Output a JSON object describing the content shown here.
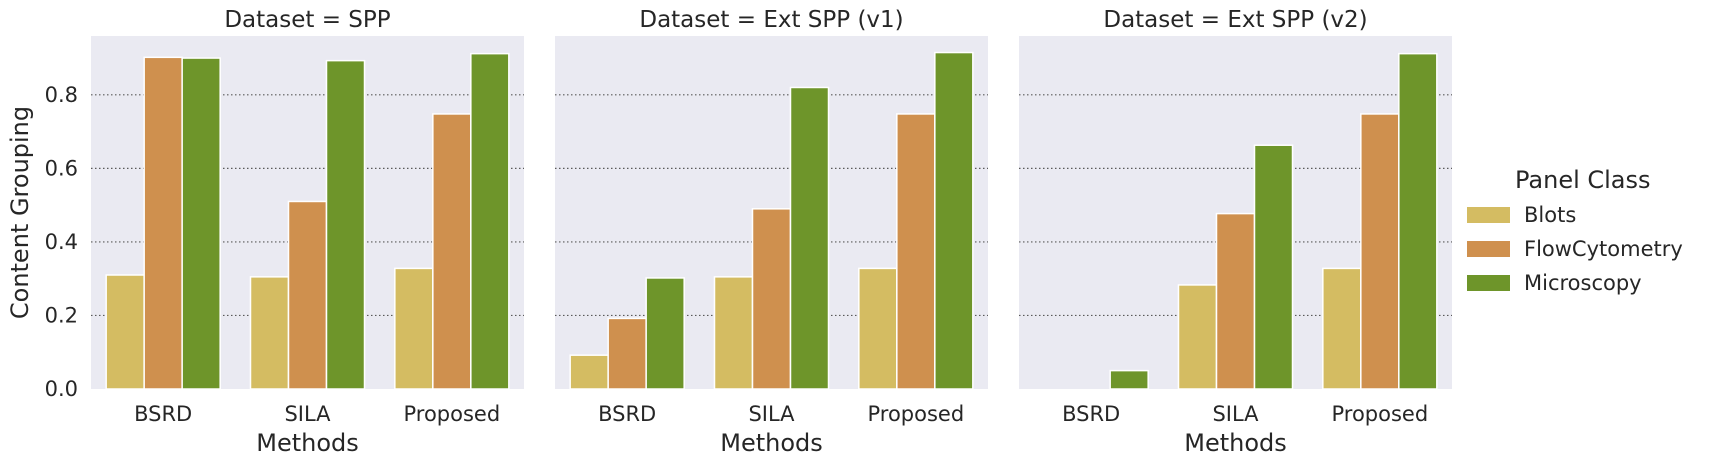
{
  "chart_data": {
    "type": "bar",
    "facet_by": "Dataset",
    "panels": [
      {
        "title": "Dataset = SPP",
        "categories": [
          "BSRD",
          "SILA",
          "Proposed"
        ],
        "series": [
          {
            "name": "Blots",
            "values": [
              0.31,
              0.305,
              0.328
            ]
          },
          {
            "name": "FlowCytometry",
            "values": [
              0.902,
              0.51,
              0.748
            ]
          },
          {
            "name": "Microscopy",
            "values": [
              0.9,
              0.893,
              0.912
            ]
          }
        ]
      },
      {
        "title": "Dataset = Ext SPP (v1)",
        "categories": [
          "BSRD",
          "SILA",
          "Proposed"
        ],
        "series": [
          {
            "name": "Blots",
            "values": [
              0.092,
              0.305,
              0.328
            ]
          },
          {
            "name": "FlowCytometry",
            "values": [
              0.192,
              0.49,
              0.748
            ]
          },
          {
            "name": "Microscopy",
            "values": [
              0.302,
              0.82,
              0.915
            ]
          }
        ]
      },
      {
        "title": "Dataset = Ext SPP (v2)",
        "categories": [
          "BSRD",
          "SILA",
          "Proposed"
        ],
        "series": [
          {
            "name": "Blots",
            "values": [
              0.0,
              0.283,
              0.328
            ]
          },
          {
            "name": "FlowCytometry",
            "values": [
              0.0,
              0.477,
              0.748
            ]
          },
          {
            "name": "Microscopy",
            "values": [
              0.05,
              0.663,
              0.912
            ]
          }
        ]
      }
    ],
    "xlabel": "Methods",
    "ylabel": "Content Grouping",
    "ylim": [
      0,
      0.96
    ],
    "yticks": [
      0.0,
      0.2,
      0.4,
      0.6,
      0.8
    ],
    "ytick_labels": [
      "0.0",
      "0.2",
      "0.4",
      "0.6",
      "0.8"
    ],
    "grid": "horizontal dotted",
    "legend": {
      "title": "Panel Class",
      "placement": "right",
      "entries": [
        "Blots",
        "FlowCytometry",
        "Microscopy"
      ]
    },
    "colors": {
      "Blots": "#d4bc62",
      "FlowCytometry": "#cf904e",
      "Microscopy": "#6e952a",
      "plot_background": "#eaeaf2",
      "grid": "#5a5a5a",
      "bar_edge": "#ffffff"
    }
  }
}
